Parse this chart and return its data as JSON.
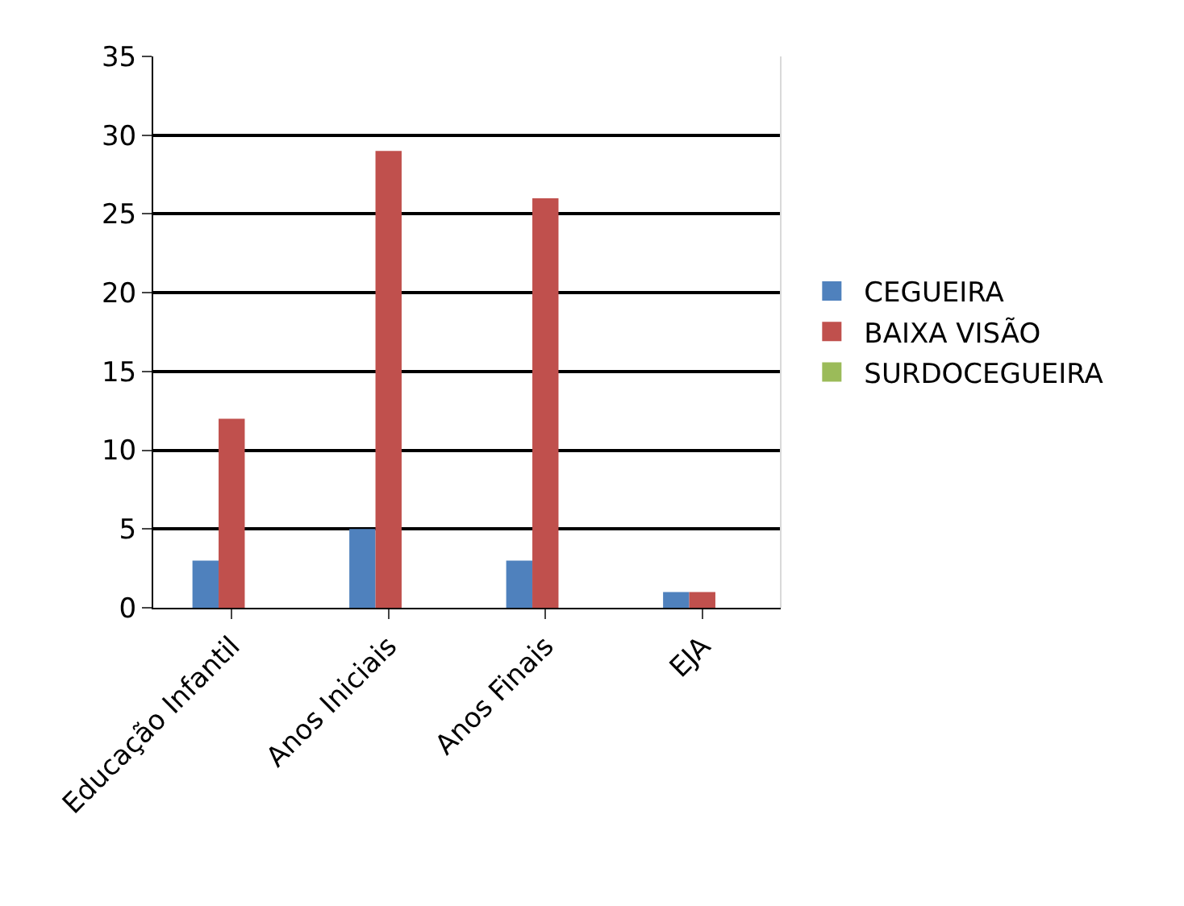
{
  "chart_data": {
    "type": "bar",
    "categories": [
      "Educação Infantil",
      "Anos Iniciais",
      "Anos Finais",
      "EJA"
    ],
    "series": [
      {
        "name": "CEGUEIRA",
        "color": "#4f81bd",
        "values": [
          3,
          5,
          3,
          1
        ]
      },
      {
        "name": "BAIXA VISÃO",
        "color": "#c0504d",
        "values": [
          12,
          29,
          26,
          1
        ]
      },
      {
        "name": "SURDOCEGUEIRA",
        "color": "#9bbb59",
        "values": [
          0,
          0,
          0,
          0
        ]
      }
    ],
    "ylim": [
      0,
      35
    ],
    "yticks": [
      0,
      5,
      10,
      15,
      20,
      25,
      30,
      35
    ],
    "grid": "y",
    "legend": "right"
  }
}
